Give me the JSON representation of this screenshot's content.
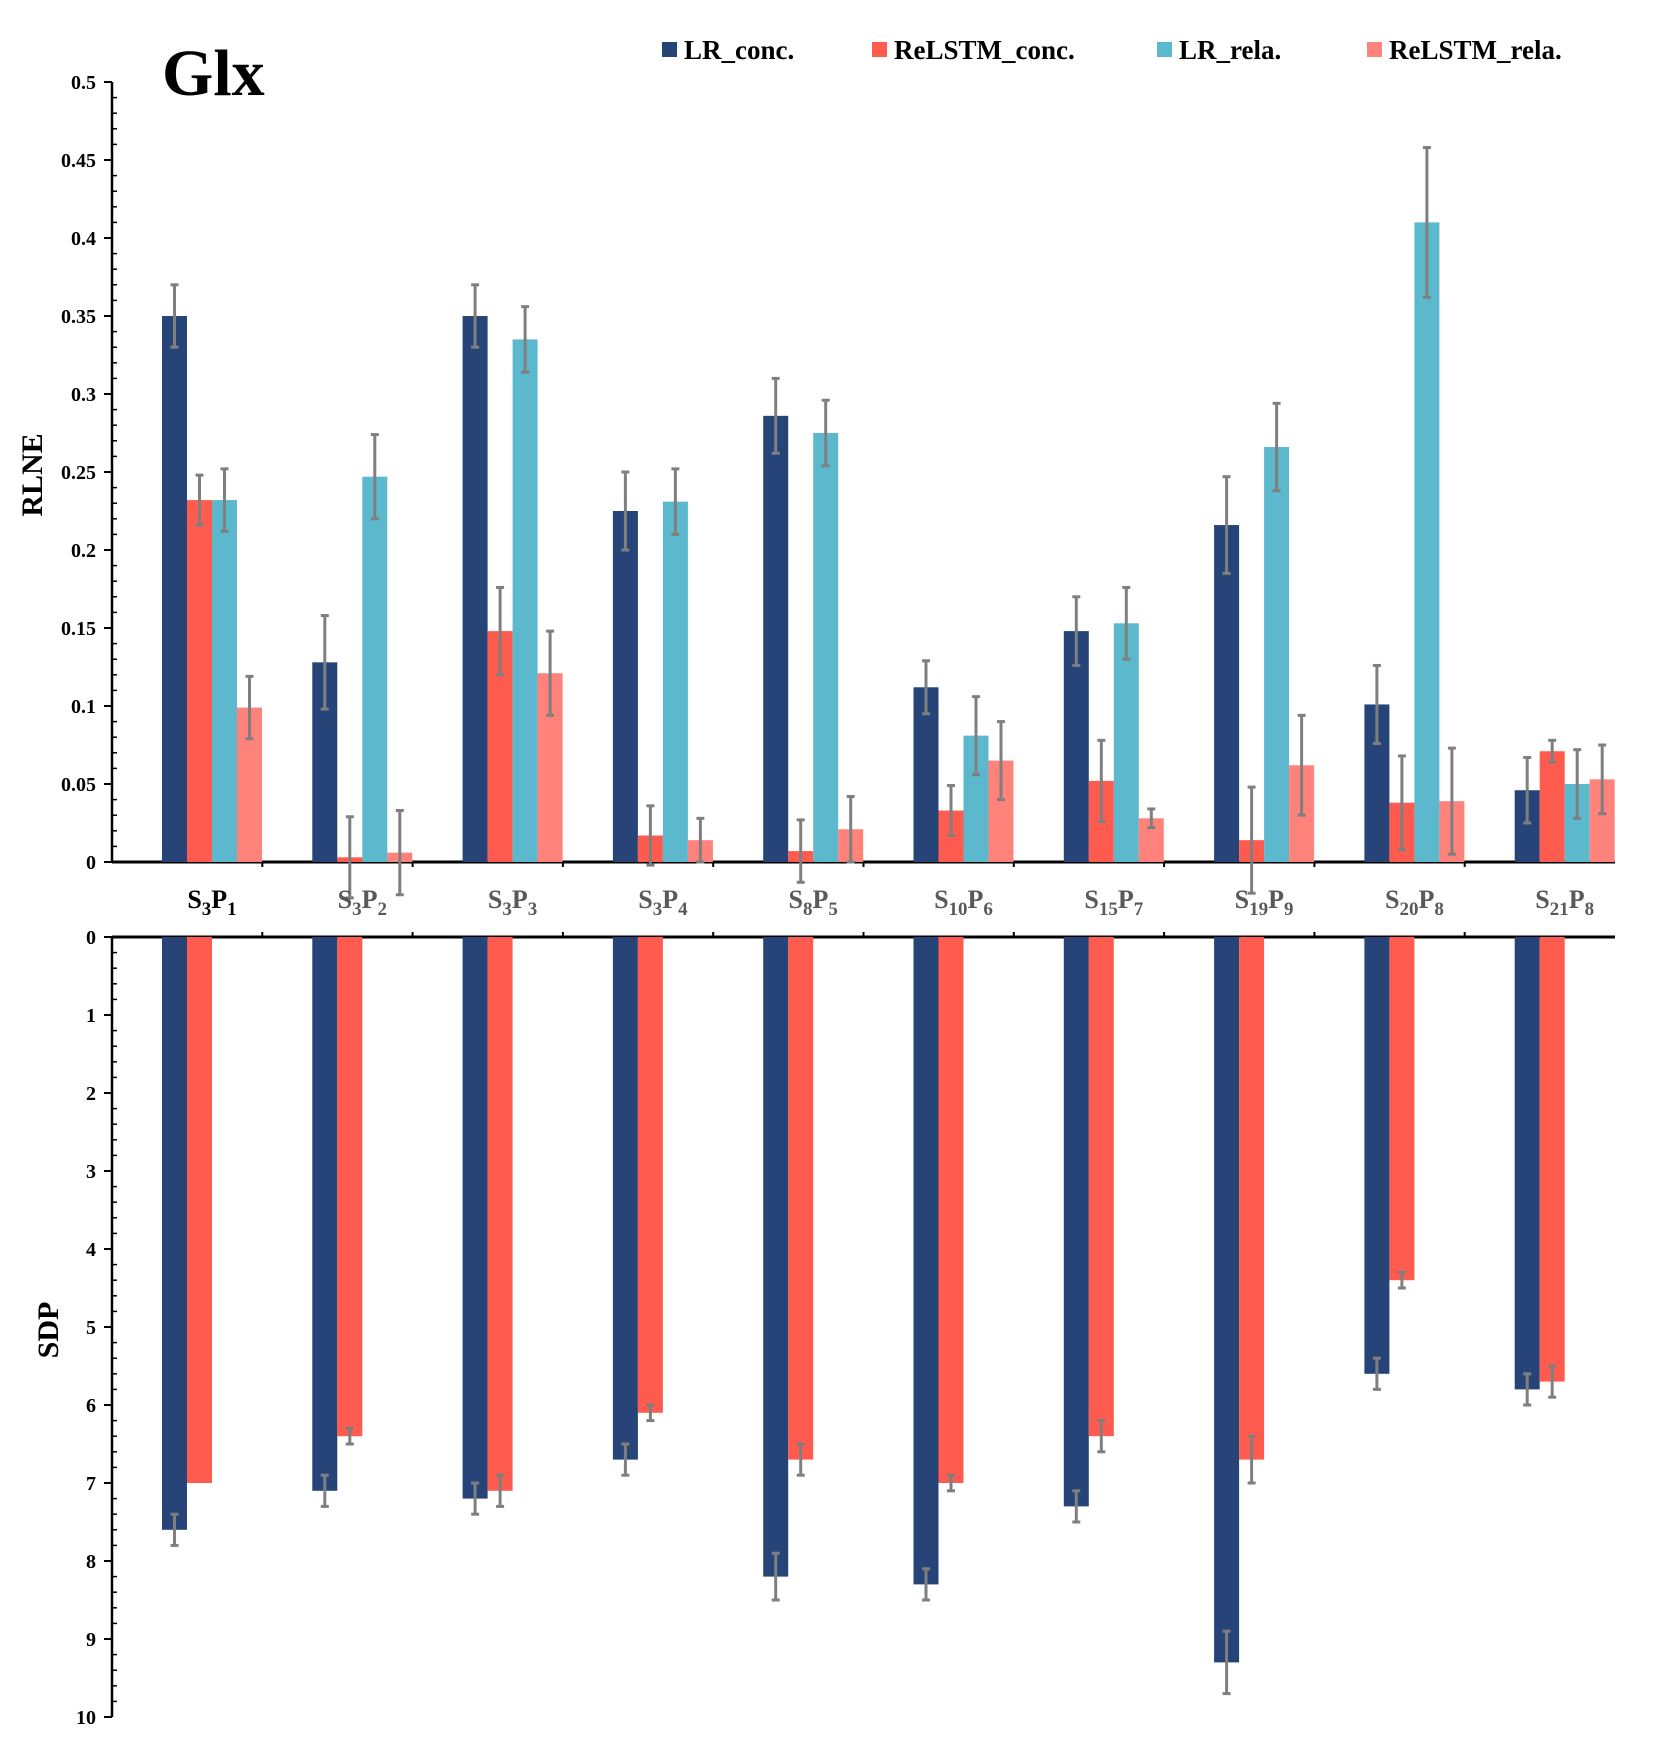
{
  "chart_data": {
    "type": "bar",
    "title": "Glx",
    "categories": [
      {
        "base": "S",
        "s1": "3",
        "mid": "P",
        "s2": "1"
      },
      {
        "base": "S",
        "s1": "3",
        "mid": "P",
        "s2": "2"
      },
      {
        "base": "S",
        "s1": "3",
        "mid": "P",
        "s2": "3"
      },
      {
        "base": "S",
        "s1": "3",
        "mid": "P",
        "s2": "4"
      },
      {
        "base": "S",
        "s1": "8",
        "mid": "P",
        "s2": "5"
      },
      {
        "base": "S",
        "s1": "10",
        "mid": "P",
        "s2": "6"
      },
      {
        "base": "S",
        "s1": "15",
        "mid": "P",
        "s2": "7"
      },
      {
        "base": "S",
        "s1": "19",
        "mid": "P",
        "s2": "9"
      },
      {
        "base": "S",
        "s1": "20",
        "mid": "P",
        "s2": "8"
      },
      {
        "base": "S",
        "s1": "21",
        "mid": "P",
        "s2": "8"
      }
    ],
    "legend": [
      {
        "name": "LR_conc.",
        "color": "#264478"
      },
      {
        "name": "ReLSTM_conc.",
        "color": "#FF5B4F"
      },
      {
        "name": "LR_rela.",
        "color": "#5BB8CD"
      },
      {
        "name": "ReLSTM_rela.",
        "color": "#FF837B"
      }
    ],
    "top_panel": {
      "ylabel": "RLNE",
      "ylim": [
        0,
        0.5
      ],
      "ticks": [
        "0",
        "0.05",
        "0.1",
        "0.15",
        "0.2",
        "0.25",
        "0.3",
        "0.35",
        "0.4",
        "0.45",
        "0.5"
      ],
      "series": [
        {
          "name": "LR_conc.",
          "color": "#264478",
          "values": [
            0.35,
            0.128,
            0.35,
            0.225,
            0.286,
            0.112,
            0.148,
            0.216,
            0.101,
            0.046
          ],
          "errors": [
            0.02,
            0.03,
            0.02,
            0.025,
            0.024,
            0.017,
            0.022,
            0.031,
            0.025,
            0.021
          ]
        },
        {
          "name": "ReLSTM_conc.",
          "color": "#FF5B4F",
          "values": [
            0.232,
            0.003,
            0.148,
            0.017,
            0.007,
            0.033,
            0.052,
            0.014,
            0.038,
            0.071
          ],
          "errors": [
            0.016,
            0.026,
            0.028,
            0.019,
            0.02,
            0.016,
            0.026,
            0.034,
            0.03,
            0.007
          ]
        },
        {
          "name": "LR_rela.",
          "color": "#5BB8CD",
          "values": [
            0.232,
            0.247,
            0.335,
            0.231,
            0.275,
            0.081,
            0.153,
            0.266,
            0.41,
            0.05
          ],
          "errors": [
            0.02,
            0.027,
            0.021,
            0.021,
            0.021,
            0.025,
            0.023,
            0.028,
            0.048,
            0.022
          ]
        },
        {
          "name": "ReLSTM_rela.",
          "color": "#FF837B",
          "values": [
            0.099,
            0.006,
            0.121,
            0.014,
            0.021,
            0.065,
            0.028,
            0.062,
            0.039,
            0.053
          ],
          "errors": [
            0.02,
            0.027,
            0.027,
            0.014,
            0.021,
            0.025,
            0.006,
            0.032,
            0.034,
            0.022
          ]
        }
      ]
    },
    "bottom_panel": {
      "ylabel": "SDP",
      "ylim": [
        0,
        10
      ],
      "inverted": true,
      "ticks": [
        "0",
        "1",
        "2",
        "3",
        "4",
        "5",
        "6",
        "7",
        "8",
        "9",
        "10"
      ],
      "series": [
        {
          "name": "LR_conc.",
          "color": "#264478",
          "values": [
            7.6,
            7.1,
            7.2,
            6.7,
            8.2,
            8.3,
            7.3,
            9.3,
            5.6,
            5.8
          ],
          "errors": [
            0.2,
            0.2,
            0.2,
            0.2,
            0.3,
            0.2,
            0.2,
            0.4,
            0.2,
            0.2
          ]
        },
        {
          "name": "ReLSTM_conc.",
          "color": "#FF5B4F",
          "values": [
            7.0,
            6.4,
            7.1,
            6.1,
            6.7,
            7.0,
            6.4,
            6.7,
            4.4,
            5.7
          ],
          "errors": [
            0.0,
            0.1,
            0.2,
            0.1,
            0.2,
            0.1,
            0.2,
            0.3,
            0.1,
            0.2
          ]
        }
      ]
    }
  }
}
